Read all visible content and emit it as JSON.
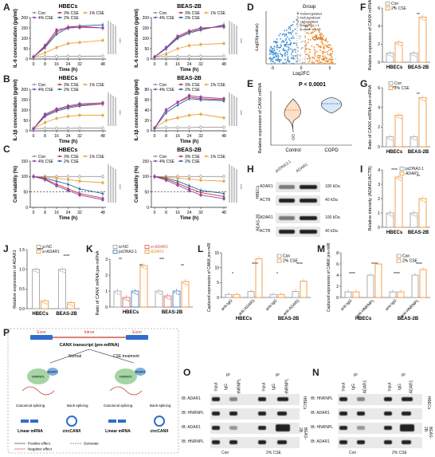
{
  "labels": {
    "A": "A",
    "B": "B",
    "C": "C",
    "D": "D",
    "E": "E",
    "F": "F",
    "G": "G",
    "H": "H",
    "I": "I",
    "J": "J",
    "K": "K",
    "L": "L",
    "M": "M",
    "N": "N",
    "O": "O",
    "P": "P"
  },
  "colors": {
    "con": "#999999",
    "cse1": "#e8a33d",
    "cse2": "#1f5fa8",
    "cse3": "#c0392b",
    "cse4": "#8e44ad",
    "orange": "#f28c28",
    "blue": "#2f6fc9",
    "gray": "#9a9a9a",
    "red": "#d9534f"
  },
  "chart_data": [
    {
      "panel": "A-left",
      "type": "line",
      "title": "HBECs",
      "ylabel": "IL-6 concentration (pg/ml)",
      "xlabel": "Time (h)",
      "x": [
        0,
        8,
        16,
        24,
        32,
        48
      ],
      "ylim": [
        0,
        200
      ],
      "yticks": [
        "0",
        "50",
        "100",
        "150",
        "200"
      ],
      "series": [
        {
          "name": "Con",
          "color": "#999999",
          "values": [
            10,
            12,
            12,
            13,
            13,
            14
          ]
        },
        {
          "name": "1% CSE",
          "color": "#e8a33d",
          "values": [
            10,
            30,
            55,
            75,
            80,
            90
          ]
        },
        {
          "name": "2% CSE",
          "color": "#1f5fa8",
          "values": [
            10,
            55,
            120,
            150,
            160,
            165
          ]
        },
        {
          "name": "3% CSE",
          "color": "#c0392b",
          "values": [
            10,
            60,
            130,
            155,
            158,
            150
          ]
        },
        {
          "name": "4% CSE",
          "color": "#8e44ad",
          "values": [
            10,
            65,
            140,
            150,
            152,
            150
          ]
        }
      ]
    },
    {
      "panel": "A-right",
      "type": "line",
      "title": "BEAS-2B",
      "ylabel": "IL-6 concentration (pg/ml)",
      "xlabel": "Time (h)",
      "x": [
        0,
        8,
        16,
        24,
        32,
        48
      ],
      "ylim": [
        0,
        200
      ],
      "yticks": [
        "0",
        "50",
        "100",
        "150",
        "200"
      ],
      "series": [
        {
          "name": "Con",
          "color": "#999999",
          "values": [
            10,
            12,
            12,
            13,
            13,
            14
          ]
        },
        {
          "name": "1% CSE",
          "color": "#e8a33d",
          "values": [
            10,
            25,
            50,
            65,
            70,
            75
          ]
        },
        {
          "name": "2% CSE",
          "color": "#1f5fa8",
          "values": [
            10,
            50,
            100,
            125,
            140,
            165
          ]
        },
        {
          "name": "3% CSE",
          "color": "#c0392b",
          "values": [
            10,
            55,
            105,
            130,
            145,
            160
          ]
        },
        {
          "name": "4% CSE",
          "color": "#8e44ad",
          "values": [
            10,
            55,
            110,
            135,
            150,
            155
          ]
        }
      ]
    },
    {
      "panel": "B-left",
      "type": "line",
      "title": "HBECs",
      "ylabel": "IL-1β concentration (pg/ml)",
      "xlabel": "Time (h)",
      "x": [
        0,
        8,
        16,
        24,
        32,
        48
      ],
      "ylim": [
        0,
        200
      ],
      "yticks": [
        "0",
        "50",
        "100",
        "150",
        "200"
      ],
      "series": [
        {
          "name": "Con",
          "color": "#999999",
          "values": [
            10,
            12,
            12,
            12,
            13,
            13
          ]
        },
        {
          "name": "1% CSE",
          "color": "#e8a33d",
          "values": [
            10,
            40,
            60,
            70,
            75,
            75
          ]
        },
        {
          "name": "2% CSE",
          "color": "#1f5fa8",
          "values": [
            10,
            70,
            95,
            110,
            120,
            130
          ]
        },
        {
          "name": "3% CSE",
          "color": "#c0392b",
          "values": [
            10,
            75,
            100,
            115,
            125,
            130
          ]
        },
        {
          "name": "4% CSE",
          "color": "#8e44ad",
          "values": [
            10,
            80,
            105,
            120,
            130,
            135
          ]
        }
      ]
    },
    {
      "panel": "B-right",
      "type": "line",
      "title": "BEAS-2B",
      "ylabel": "IL-1β concentration (pg/ml)",
      "xlabel": "Time (h)",
      "x": [
        0,
        8,
        16,
        24,
        32,
        48
      ],
      "ylim": [
        0,
        80
      ],
      "yticks": [
        "0",
        "20",
        "40",
        "60",
        "80"
      ],
      "series": [
        {
          "name": "Con",
          "color": "#999999",
          "values": [
            5,
            6,
            6,
            6,
            7,
            7
          ]
        },
        {
          "name": "1% CSE",
          "color": "#e8a33d",
          "values": [
            5,
            20,
            25,
            30,
            32,
            25
          ]
        },
        {
          "name": "2% CSE",
          "color": "#1f5fa8",
          "values": [
            5,
            35,
            50,
            62,
            60,
            58
          ]
        },
        {
          "name": "3% CSE",
          "color": "#c0392b",
          "values": [
            5,
            40,
            55,
            65,
            62,
            60
          ]
        },
        {
          "name": "4% CSE",
          "color": "#8e44ad",
          "values": [
            5,
            40,
            55,
            68,
            65,
            62
          ]
        }
      ]
    },
    {
      "panel": "C-left",
      "type": "line",
      "title": "HBECs",
      "ylabel": "Cell viability (%)",
      "xlabel": "Time (h)",
      "x": [
        0,
        8,
        16,
        24,
        32,
        48
      ],
      "ylim": [
        0,
        150
      ],
      "yticks": [
        "0",
        "50",
        "100",
        "150"
      ],
      "series": [
        {
          "name": "Con",
          "color": "#999999",
          "values": [
            100,
            100,
            100,
            100,
            100,
            100
          ]
        },
        {
          "name": "1% CSE",
          "color": "#e8a33d",
          "values": [
            100,
            98,
            95,
            90,
            85,
            80
          ]
        },
        {
          "name": "2% CSE",
          "color": "#1f5fa8",
          "values": [
            100,
            95,
            85,
            75,
            60,
            45
          ]
        },
        {
          "name": "3% CSE",
          "color": "#c0392b",
          "values": [
            100,
            92,
            75,
            60,
            45,
            30
          ]
        },
        {
          "name": "4% CSE",
          "color": "#8e44ad",
          "values": [
            100,
            90,
            70,
            55,
            40,
            25
          ]
        }
      ]
    },
    {
      "panel": "C-right",
      "type": "line",
      "title": "BEAS-2B",
      "ylabel": "Cell viability (%)",
      "xlabel": "Time (h)",
      "x": [
        0,
        8,
        16,
        24,
        32,
        48
      ],
      "ylim": [
        0,
        150
      ],
      "yticks": [
        "0",
        "50",
        "100",
        "150"
      ],
      "series": [
        {
          "name": "Con",
          "color": "#999999",
          "values": [
            100,
            100,
            100,
            100,
            100,
            100
          ]
        },
        {
          "name": "1% CSE",
          "color": "#e8a33d",
          "values": [
            100,
            98,
            95,
            92,
            88,
            85
          ]
        },
        {
          "name": "2% CSE",
          "color": "#1f5fa8",
          "values": [
            100,
            95,
            85,
            70,
            55,
            45
          ]
        },
        {
          "name": "3% CSE",
          "color": "#c0392b",
          "values": [
            100,
            92,
            78,
            62,
            48,
            35
          ]
        },
        {
          "name": "4% CSE",
          "color": "#8e44ad",
          "values": [
            100,
            88,
            72,
            55,
            40,
            28
          ]
        }
      ]
    }
  ],
  "xticks": [
    "0",
    "8",
    "16",
    "24",
    "32",
    "48"
  ],
  "legend_line": [
    "Con",
    "2% CSE",
    "4% CSE",
    "1% CSE",
    "3% CSE"
  ],
  "panelD": {
    "title": "Group",
    "ylabel": "-Log10(q-value)",
    "xlabel": "Log2FC",
    "legend": [
      "Downregulated",
      "Not significant",
      "Upregulated",
      "(Log2FC) > 1",
      "p-value < 0.05"
    ],
    "gene": "CANX",
    "xticks": [
      "-5",
      "0",
      "5"
    ]
  },
  "panelE": {
    "ylabel": "Relative expression of CANX mRNA",
    "p": "P < 0.0001",
    "cats": [
      "Control",
      "COPD"
    ]
  },
  "panelF": {
    "ylabel": "Relative expression of CANX mRNA",
    "legend": [
      "Con",
      "2% CSE"
    ],
    "cats": [
      "HBECs",
      "BEAS-2B"
    ],
    "values": [
      [
        1,
        2.2
      ],
      [
        1,
        5
      ]
    ],
    "ylim": [
      0,
      6
    ],
    "yticks": [
      "0",
      "2",
      "4",
      "6"
    ],
    "sig": [
      "*",
      "**"
    ]
  },
  "panelG": {
    "ylabel": "Ratio of CANX mRNA:pre-mRNA",
    "legend": [
      "Con",
      "2% CSE"
    ],
    "cats": [
      "HBECs",
      "BEAS-2B"
    ],
    "values": [
      [
        1,
        3.2
      ],
      [
        1,
        5
      ]
    ],
    "ylim": [
      0,
      6
    ],
    "yticks": [
      "0",
      "2",
      "4",
      "6"
    ],
    "sig": [
      "**",
      "**"
    ]
  },
  "panelH": {
    "cols": [
      "pcDNA3.1",
      "ADAR1"
    ],
    "rows": [
      "ADAR1",
      "ACTB",
      "ADAR1",
      "ACTB"
    ],
    "groups": [
      "HBECs",
      "BEAS-2B"
    ],
    "kda": [
      "100 kDa",
      "40 kDa",
      "100 kDa",
      "40 kDa"
    ]
  },
  "panelI": {
    "ylabel": "Relative intensity (ADAR1/ACTB)",
    "legend": [
      "pcDNA3.1",
      "ADAR1"
    ],
    "cats": [
      "HBECs",
      "BEAS-2B"
    ],
    "values": [
      [
        1,
        3.5
      ],
      [
        1,
        2
      ]
    ],
    "ylim": [
      0,
      4
    ],
    "yticks": [
      "0",
      "1",
      "2",
      "3",
      "4"
    ],
    "sig": [
      "****",
      "**"
    ]
  },
  "panelJ": {
    "ylabel": "Relative expression of ADAR1",
    "legend": [
      "si-NC",
      "si-ADAR1"
    ],
    "cats": [
      "HBECs",
      "BEAS-2B"
    ],
    "values": [
      [
        1,
        0.2
      ],
      [
        1,
        0.15
      ]
    ],
    "ylim": [
      0,
      1.5
    ],
    "yticks": [
      "0.0",
      "0.5",
      "1.0",
      "1.5"
    ],
    "sig": [
      "****",
      "****"
    ]
  },
  "panelK": {
    "ylabel": "Ratio of CANX mRNA:pre-mRNA",
    "legend": [
      "si-NC",
      "si-ADAR1",
      "pcDNA3.1",
      "ADAR1"
    ],
    "cats": [
      "HBECs",
      "BEAS-2B"
    ],
    "values": [
      [
        1,
        0.6,
        1,
        2.6
      ],
      [
        1,
        0.7,
        1,
        1.6
      ]
    ],
    "ylim": [
      0,
      3
    ],
    "yticks": [
      "0",
      "1",
      "2",
      "3"
    ],
    "sig": [
      "**",
      "**",
      "***",
      "**"
    ]
  },
  "panelL": {
    "ylabel": "Captured expression of CANX pre-mRNA",
    "legend": [
      "Con",
      "2% CSE"
    ],
    "groups": [
      "HBECs",
      "BEAS-2B"
    ],
    "cats": [
      "anti-IgG",
      "anti-ADAR1",
      "anti-IgG",
      "anti-ADAR1"
    ],
    "values": [
      [
        1,
        1
      ],
      [
        2,
        13
      ],
      [
        1,
        1
      ],
      [
        2,
        5.5
      ]
    ],
    "ylim": [
      0,
      15
    ],
    "yticks": [
      "0",
      "5",
      "10",
      "15"
    ],
    "sig": [
      "*",
      "****",
      "*",
      "****"
    ]
  },
  "panelM": {
    "ylabel": "Captured expression of CANX pre-mRNA",
    "legend": [
      "Con",
      "2% CSE"
    ],
    "groups": [
      "HBECs",
      "BEAS-2B"
    ],
    "cats": [
      "anti-IgG",
      "anti-HNRNPL",
      "anti-IgG",
      "anti-HNRNPL"
    ],
    "values": [
      [
        1,
        1
      ],
      [
        4,
        6
      ],
      [
        1,
        1
      ],
      [
        4,
        5
      ]
    ],
    "ylim": [
      0,
      8
    ],
    "yticks": [
      "0",
      "2",
      "4",
      "6",
      "8"
    ],
    "sig": [
      "****",
      "****",
      "****",
      "****"
    ]
  },
  "panelP": {
    "exon1": "Exon",
    "intron": "Intron",
    "exon2": "Exon",
    "transcript": "CANX transcript (pre-mRNA)",
    "adar1": "ADAR1",
    "hnrnpl": "HNRNPL",
    "normal": "Normal",
    "cse": "CSE treatment",
    "canonical": "Canonical splicing",
    "back": "Back-splicing",
    "out": [
      "Linear mRNA",
      "circCANX",
      "Linear mRNA",
      "circCANX"
    ],
    "legend": [
      "Positive effect",
      "Negative effect",
      "Generate"
    ]
  },
  "panelO": {
    "ip": "IP",
    "cols": [
      "Input",
      "IgG",
      "HNRNPL",
      "Input",
      "IgG",
      "HNRNPL"
    ],
    "rows": [
      "IB: ADAR1",
      "IB: HNRNPL",
      "IB: ADAR1",
      "IB: HNRNPL"
    ],
    "cells": [
      "HBECs",
      "BEAS-2B"
    ],
    "groups": [
      "Con",
      "2% CSE"
    ]
  },
  "panelN": {
    "ip": "IP",
    "cols": [
      "Input",
      "IgG",
      "ADAR1",
      "Input",
      "IgG",
      "ADAR1"
    ],
    "rows": [
      "IB: HNRNPL",
      "IB: ADAR1",
      "IB: HNRNPL",
      "IB: ADAR1"
    ],
    "cells": [
      "HBECs",
      "BEAS-2B"
    ],
    "groups": [
      "Con",
      "2% CSE"
    ]
  }
}
